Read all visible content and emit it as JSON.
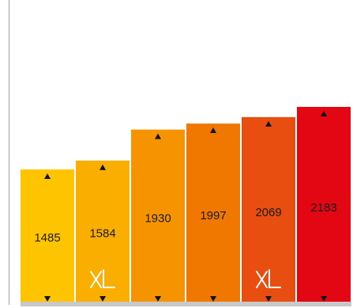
{
  "chart_data": {
    "type": "bar",
    "title": "",
    "xlabel": "",
    "ylabel": "",
    "ylim": [
      0,
      2183
    ],
    "grid": false,
    "legend": "none",
    "categories": [
      "",
      "",
      "",
      "",
      "",
      ""
    ],
    "values": [
      1485,
      1584,
      1930,
      1997,
      2069,
      2183
    ],
    "value_labels": [
      "1485",
      "1584",
      "1930",
      "1997",
      "2069",
      "2183"
    ],
    "colors": [
      "#FFC400",
      "#F9AE00",
      "#F59300",
      "#F07800",
      "#E84E0F",
      "#E30613"
    ],
    "logo_marks": [
      false,
      true,
      false,
      false,
      true,
      false
    ],
    "logo_text": "XL",
    "logo_icon": "xl-logo-icon",
    "marker_icons": [
      "triangle-up-icon",
      "triangle-down-icon"
    ],
    "axis_color": "#9d9d9d",
    "baseline_color": "#c8c8c8"
  }
}
